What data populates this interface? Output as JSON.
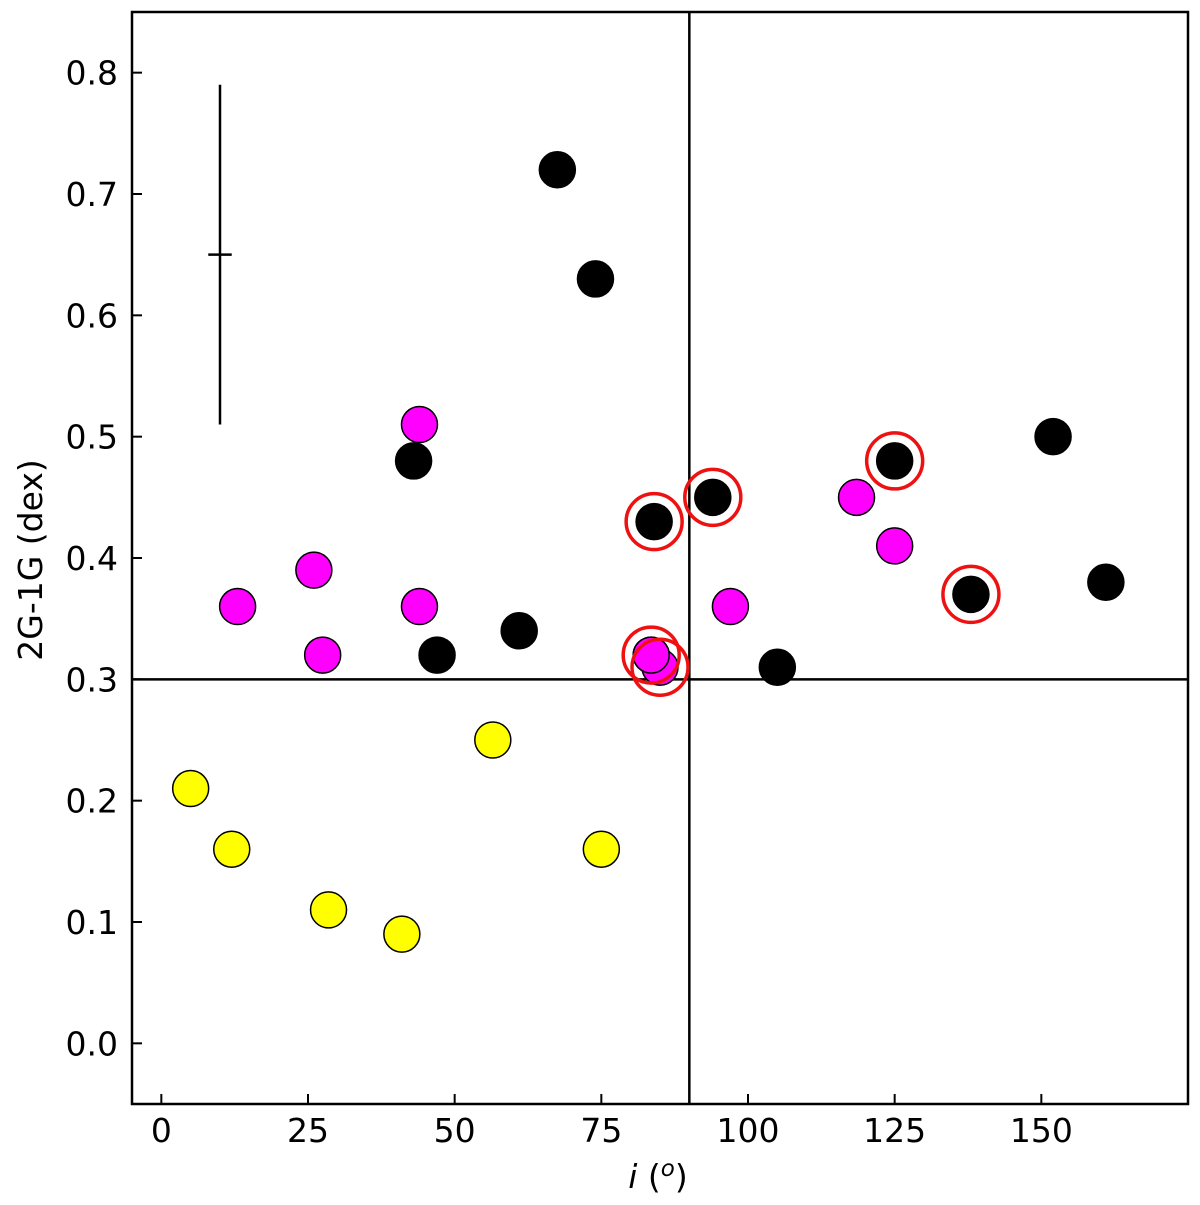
{
  "chart_data": {
    "type": "scatter",
    "title": "",
    "xlabel": "i",
    "xlabel_unit": "o",
    "ylabel": "2G-1G (dex)",
    "xlim": [
      -5,
      175
    ],
    "ylim": [
      -0.05,
      0.85
    ],
    "x_ticks": [
      0,
      25,
      50,
      75,
      100,
      125,
      150
    ],
    "x_tick_labels": [
      "0",
      "25",
      "50",
      "75",
      "100",
      "125",
      "150"
    ],
    "y_ticks": [
      0.0,
      0.1,
      0.2,
      0.3,
      0.4,
      0.5,
      0.6,
      0.7,
      0.8
    ],
    "y_tick_labels": [
      "0.0",
      "0.1",
      "0.2",
      "0.3",
      "0.4",
      "0.5",
      "0.6",
      "0.7",
      "0.8"
    ],
    "grid": false,
    "reference_lines": {
      "vertical_x": 90,
      "horizontal_y": 0.3
    },
    "error_bar": {
      "x": 10,
      "y": 0.65,
      "y_low": 0.51,
      "y_high": 0.79,
      "x_low": 8,
      "x_high": 12
    },
    "colors": {
      "black_series": "#000000",
      "magenta_series": "#ff00ff",
      "yellow_series": "#ffff00",
      "highlight_ring": "#ee1111",
      "marker_edge": "#000000"
    },
    "series": [
      {
        "color": "#000000",
        "points": [
          {
            "x": 67.5,
            "y": 0.72
          },
          {
            "x": 74,
            "y": 0.63
          },
          {
            "x": 43,
            "y": 0.48
          },
          {
            "x": 47,
            "y": 0.32
          },
          {
            "x": 61,
            "y": 0.34
          },
          {
            "x": 84,
            "y": 0.43
          },
          {
            "x": 94,
            "y": 0.45
          },
          {
            "x": 105,
            "y": 0.31
          },
          {
            "x": 125,
            "y": 0.48
          },
          {
            "x": 138,
            "y": 0.37
          },
          {
            "x": 152,
            "y": 0.5
          },
          {
            "x": 161,
            "y": 0.38
          },
          {
            "x": 83.5,
            "y": 0.32
          }
        ]
      },
      {
        "color": "#ff00ff",
        "points": [
          {
            "x": 13,
            "y": 0.36
          },
          {
            "x": 26,
            "y": 0.39
          },
          {
            "x": 27.5,
            "y": 0.32
          },
          {
            "x": 44,
            "y": 0.36
          },
          {
            "x": 44,
            "y": 0.51
          },
          {
            "x": 85,
            "y": 0.31
          },
          {
            "x": 83.5,
            "y": 0.32
          },
          {
            "x": 97,
            "y": 0.36
          },
          {
            "x": 118.5,
            "y": 0.45
          },
          {
            "x": 125,
            "y": 0.41
          }
        ]
      },
      {
        "color": "#ffff00",
        "points": [
          {
            "x": 5,
            "y": 0.21
          },
          {
            "x": 12,
            "y": 0.16
          },
          {
            "x": 28.5,
            "y": 0.11
          },
          {
            "x": 41,
            "y": 0.09
          },
          {
            "x": 56.5,
            "y": 0.25
          },
          {
            "x": 75,
            "y": 0.16
          }
        ]
      }
    ],
    "highlighted_points": [
      {
        "x": 84,
        "y": 0.43
      },
      {
        "x": 94,
        "y": 0.45
      },
      {
        "x": 125,
        "y": 0.48
      },
      {
        "x": 138,
        "y": 0.37
      },
      {
        "x": 83.5,
        "y": 0.32
      },
      {
        "x": 85,
        "y": 0.31
      }
    ]
  }
}
